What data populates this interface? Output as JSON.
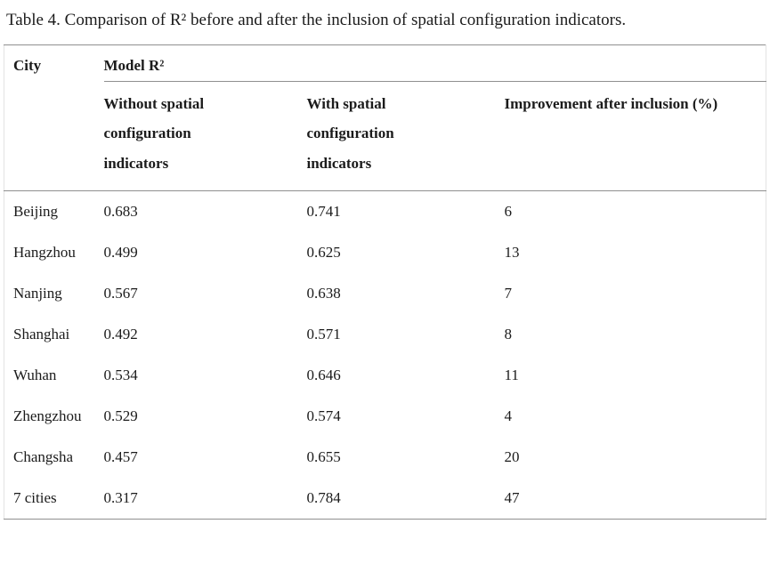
{
  "caption": {
    "text": "Table 4. Comparison of R² before and after the inclusion of spatial configuration indicators."
  },
  "table": {
    "col_city_header": "City",
    "group_header": "Model R²",
    "sub_headers": [
      "Without spatial configuration indicators",
      "With spatial configuration indicators",
      "Improvement after inclusion (%)"
    ],
    "rows": [
      {
        "city": "Beijing",
        "r2_without": "0.683",
        "r2_with": "0.741",
        "improvement": "6"
      },
      {
        "city": "Hangzhou",
        "r2_without": "0.499",
        "r2_with": "0.625",
        "improvement": "13"
      },
      {
        "city": "Nanjing",
        "r2_without": "0.567",
        "r2_with": "0.638",
        "improvement": "7"
      },
      {
        "city": "Shanghai",
        "r2_without": "0.492",
        "r2_with": "0.571",
        "improvement": "8"
      },
      {
        "city": "Wuhan",
        "r2_without": "0.534",
        "r2_with": "0.646",
        "improvement": "11"
      },
      {
        "city": "Zhengzhou",
        "r2_without": "0.529",
        "r2_with": "0.574",
        "improvement": "4"
      },
      {
        "city": "Changsha",
        "r2_without": "0.457",
        "r2_with": "0.655",
        "improvement": "20"
      },
      {
        "city": "7 cities",
        "r2_without": "0.317",
        "r2_with": "0.784",
        "improvement": "47"
      }
    ]
  },
  "colors": {
    "text": "#1b1b1b",
    "rule": "#8f8f8f",
    "outer_border": "#e3e3e3",
    "background": "#ffffff"
  }
}
